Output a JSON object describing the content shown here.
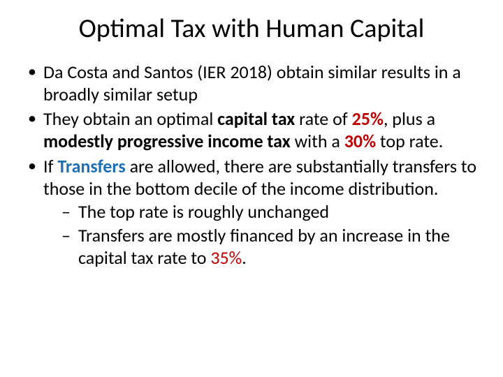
{
  "title": "Optimal Tax with Human Capital",
  "bullet1": {
    "t1": "Da Costa and Santos (IER 2018) obtain similar results in a broadly similar setup"
  },
  "bullet2": {
    "t1": "They obtain an optimal ",
    "t2": "capital tax",
    "t3": " rate of ",
    "t4": "25%",
    "t5": ", plus a ",
    "t6": "modestly progressive income tax",
    "t7": " with a ",
    "t8": "30%",
    "t9": " top rate."
  },
  "bullet3": {
    "t1": "If ",
    "t2": "Transfers",
    "t3": " are allowed, there are substantially transfers to those in the bottom decile of the income distribution."
  },
  "sub1": {
    "t1": "The top rate is roughly unchanged"
  },
  "sub2": {
    "t1": "Transfers are mostly financed by an increase in the capital tax rate to ",
    "t2": "35%",
    "t3": "."
  },
  "colors": {
    "text": "#000000",
    "red": "#c00000",
    "blue": "#1f6fb4",
    "background": "#ffffff"
  },
  "typography": {
    "title_fontsize": 38,
    "body_fontsize": 26,
    "font_family": "Calibri"
  }
}
